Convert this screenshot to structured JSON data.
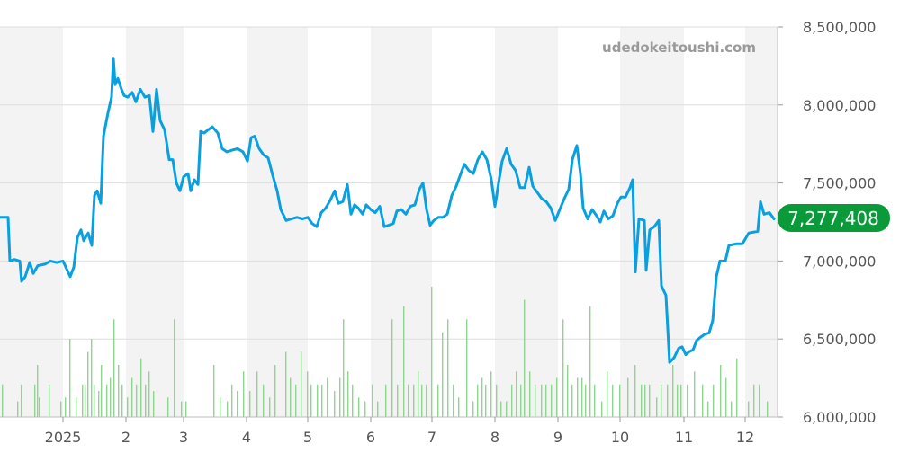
{
  "watermark": "udedokeitoushi.com",
  "colors": {
    "line": "#0aa0e0",
    "volume": "#8fd490",
    "band": "#f3f3f3",
    "grid": "#dedede",
    "badge": "#0a9a3a",
    "axis_text": "#555555",
    "watermark": "#9a9a9a"
  },
  "chart_data": {
    "type": "line",
    "title": "",
    "xlabel": "",
    "ylabel": "",
    "ylim": [
      6000000,
      8500000
    ],
    "y_ticks": [
      "8,500,000",
      "8,000,000",
      "7,500,000",
      "7,000,000",
      "6,500,000",
      "6,000,000"
    ],
    "x_ticks": [
      "2025",
      "2",
      "3",
      "4",
      "5",
      "6",
      "7",
      "8",
      "9",
      "10",
      "11",
      "12"
    ],
    "current_value_label": "7,277,408",
    "grid": true,
    "series": [
      {
        "points": [
          [
            0,
            7280000
          ],
          [
            9,
            7280000
          ],
          [
            11,
            7000000
          ],
          [
            16,
            7010000
          ],
          [
            22,
            7000000
          ],
          [
            24,
            6870000
          ],
          [
            28,
            6900000
          ],
          [
            33,
            6990000
          ],
          [
            37,
            6920000
          ],
          [
            42,
            6970000
          ],
          [
            50,
            6980000
          ],
          [
            56,
            7000000
          ],
          [
            63,
            6990000
          ],
          [
            70,
            7000000
          ],
          [
            74,
            6950000
          ],
          [
            78,
            6900000
          ],
          [
            82,
            6960000
          ],
          [
            86,
            7150000
          ],
          [
            90,
            7200000
          ],
          [
            93,
            7130000
          ],
          [
            98,
            7180000
          ],
          [
            102,
            7100000
          ],
          [
            105,
            7420000
          ],
          [
            108,
            7450000
          ],
          [
            112,
            7370000
          ],
          [
            115,
            7800000
          ],
          [
            120,
            7950000
          ],
          [
            124,
            8050000
          ],
          [
            126,
            8300000
          ],
          [
            128,
            8130000
          ],
          [
            131,
            8170000
          ],
          [
            135,
            8100000
          ],
          [
            138,
            8060000
          ],
          [
            142,
            8050000
          ],
          [
            147,
            8080000
          ],
          [
            151,
            8020000
          ],
          [
            156,
            8100000
          ],
          [
            161,
            8050000
          ],
          [
            166,
            8060000
          ],
          [
            170,
            7830000
          ],
          [
            174,
            8100000
          ],
          [
            178,
            7900000
          ],
          [
            183,
            7840000
          ],
          [
            188,
            7650000
          ],
          [
            192,
            7650000
          ],
          [
            196,
            7500000
          ],
          [
            200,
            7450000
          ],
          [
            204,
            7540000
          ],
          [
            209,
            7560000
          ],
          [
            212,
            7450000
          ],
          [
            216,
            7520000
          ],
          [
            220,
            7490000
          ],
          [
            223,
            7830000
          ],
          [
            227,
            7820000
          ],
          [
            231,
            7840000
          ],
          [
            236,
            7860000
          ],
          [
            242,
            7820000
          ],
          [
            247,
            7720000
          ],
          [
            252,
            7700000
          ],
          [
            258,
            7710000
          ],
          [
            264,
            7720000
          ],
          [
            270,
            7700000
          ],
          [
            275,
            7640000
          ],
          [
            279,
            7790000
          ],
          [
            283,
            7800000
          ],
          [
            288,
            7720000
          ],
          [
            293,
            7680000
          ],
          [
            298,
            7660000
          ],
          [
            303,
            7550000
          ],
          [
            308,
            7450000
          ],
          [
            312,
            7330000
          ],
          [
            318,
            7260000
          ],
          [
            324,
            7270000
          ],
          [
            330,
            7280000
          ],
          [
            336,
            7270000
          ],
          [
            342,
            7280000
          ],
          [
            347,
            7240000
          ],
          [
            352,
            7220000
          ],
          [
            357,
            7310000
          ],
          [
            362,
            7340000
          ],
          [
            367,
            7390000
          ],
          [
            372,
            7450000
          ],
          [
            376,
            7370000
          ],
          [
            381,
            7380000
          ],
          [
            386,
            7490000
          ],
          [
            390,
            7300000
          ],
          [
            394,
            7360000
          ],
          [
            398,
            7340000
          ],
          [
            403,
            7300000
          ],
          [
            407,
            7360000
          ],
          [
            412,
            7330000
          ],
          [
            417,
            7310000
          ],
          [
            422,
            7350000
          ],
          [
            427,
            7220000
          ],
          [
            432,
            7230000
          ],
          [
            437,
            7240000
          ],
          [
            441,
            7320000
          ],
          [
            446,
            7330000
          ],
          [
            451,
            7300000
          ],
          [
            456,
            7350000
          ],
          [
            461,
            7360000
          ],
          [
            466,
            7460000
          ],
          [
            470,
            7500000
          ],
          [
            474,
            7330000
          ],
          [
            478,
            7230000
          ],
          [
            482,
            7260000
          ],
          [
            487,
            7280000
          ],
          [
            492,
            7280000
          ],
          [
            497,
            7300000
          ],
          [
            502,
            7420000
          ],
          [
            507,
            7480000
          ],
          [
            512,
            7560000
          ],
          [
            516,
            7620000
          ],
          [
            521,
            7580000
          ],
          [
            526,
            7560000
          ],
          [
            531,
            7650000
          ],
          [
            536,
            7700000
          ],
          [
            541,
            7650000
          ],
          [
            546,
            7520000
          ],
          [
            550,
            7350000
          ],
          [
            554,
            7500000
          ],
          [
            558,
            7640000
          ],
          [
            563,
            7720000
          ],
          [
            568,
            7620000
          ],
          [
            573,
            7580000
          ],
          [
            578,
            7470000
          ],
          [
            583,
            7470000
          ],
          [
            588,
            7600000
          ],
          [
            592,
            7480000
          ],
          [
            597,
            7440000
          ],
          [
            602,
            7400000
          ],
          [
            607,
            7380000
          ],
          [
            612,
            7340000
          ],
          [
            617,
            7260000
          ],
          [
            622,
            7330000
          ],
          [
            627,
            7400000
          ],
          [
            632,
            7460000
          ],
          [
            636,
            7650000
          ],
          [
            641,
            7740000
          ],
          [
            645,
            7560000
          ],
          [
            648,
            7340000
          ],
          [
            653,
            7270000
          ],
          [
            658,
            7330000
          ],
          [
            663,
            7290000
          ],
          [
            667,
            7250000
          ],
          [
            671,
            7320000
          ],
          [
            676,
            7270000
          ],
          [
            681,
            7290000
          ],
          [
            686,
            7370000
          ],
          [
            690,
            7410000
          ],
          [
            695,
            7410000
          ],
          [
            700,
            7470000
          ],
          [
            703,
            7520000
          ],
          [
            706,
            6930000
          ],
          [
            710,
            7270000
          ],
          [
            716,
            7260000
          ],
          [
            718,
            6940000
          ],
          [
            722,
            7200000
          ],
          [
            727,
            7220000
          ],
          [
            732,
            7260000
          ],
          [
            735,
            6840000
          ],
          [
            740,
            6780000
          ],
          [
            744,
            6350000
          ],
          [
            749,
            6380000
          ],
          [
            754,
            6440000
          ],
          [
            758,
            6450000
          ],
          [
            762,
            6400000
          ],
          [
            766,
            6420000
          ],
          [
            770,
            6430000
          ],
          [
            774,
            6490000
          ],
          [
            778,
            6510000
          ],
          [
            783,
            6530000
          ],
          [
            788,
            6540000
          ],
          [
            792,
            6620000
          ],
          [
            796,
            6900000
          ],
          [
            800,
            7000000
          ],
          [
            806,
            7000000
          ],
          [
            810,
            7100000
          ],
          [
            818,
            7110000
          ],
          [
            825,
            7110000
          ],
          [
            832,
            7180000
          ],
          [
            842,
            7190000
          ],
          [
            845,
            7380000
          ],
          [
            849,
            7300000
          ],
          [
            855,
            7310000
          ],
          [
            860,
            7270000
          ]
        ]
      }
    ],
    "volume": [
      [
        2,
        0.25
      ],
      [
        19,
        0.12
      ],
      [
        23,
        0.25
      ],
      [
        38,
        0.25
      ],
      [
        41,
        0.4
      ],
      [
        43,
        0.15
      ],
      [
        54,
        0.25
      ],
      [
        67,
        0.12
      ],
      [
        72,
        0.15
      ],
      [
        77,
        0.6
      ],
      [
        84,
        0.15
      ],
      [
        91,
        0.25
      ],
      [
        94,
        0.25
      ],
      [
        97,
        0.5
      ],
      [
        101,
        0.6
      ],
      [
        104,
        0.25
      ],
      [
        109,
        0.2
      ],
      [
        112,
        0.4
      ],
      [
        118,
        0.25
      ],
      [
        122,
        0.3
      ],
      [
        126,
        0.75
      ],
      [
        131,
        0.4
      ],
      [
        135,
        0.25
      ],
      [
        141,
        0.15
      ],
      [
        146,
        0.3
      ],
      [
        151,
        0.25
      ],
      [
        156,
        0.45
      ],
      [
        161,
        0.25
      ],
      [
        165,
        0.35
      ],
      [
        170,
        0.2
      ],
      [
        186,
        0.15
      ],
      [
        193,
        0.75
      ],
      [
        201,
        0.12
      ],
      [
        206,
        0.12
      ],
      [
        237,
        0.4
      ],
      [
        244,
        0.15
      ],
      [
        252,
        0.12
      ],
      [
        257,
        0.25
      ],
      [
        263,
        0.2
      ],
      [
        270,
        0.35
      ],
      [
        277,
        0.2
      ],
      [
        285,
        0.35
      ],
      [
        292,
        0.25
      ],
      [
        299,
        0.15
      ],
      [
        305,
        0.4
      ],
      [
        317,
        0.5
      ],
      [
        322,
        0.3
      ],
      [
        328,
        0.25
      ],
      [
        334,
        0.5
      ],
      [
        341,
        0.35
      ],
      [
        345,
        0.25
      ],
      [
        352,
        0.25
      ],
      [
        357,
        0.25
      ],
      [
        363,
        0.3
      ],
      [
        371,
        0.2
      ],
      [
        377,
        0.3
      ],
      [
        381,
        0.75
      ],
      [
        386,
        0.35
      ],
      [
        391,
        0.25
      ],
      [
        398,
        0.15
      ],
      [
        405,
        0.12
      ],
      [
        413,
        0.25
      ],
      [
        419,
        0.12
      ],
      [
        428,
        0.25
      ],
      [
        435,
        0.75
      ],
      [
        441,
        0.25
      ],
      [
        448,
        0.85
      ],
      [
        453,
        0.25
      ],
      [
        459,
        0.25
      ],
      [
        464,
        0.35
      ],
      [
        468,
        0.25
      ],
      [
        473,
        0.25
      ],
      [
        479,
        1.0
      ],
      [
        486,
        0.25
      ],
      [
        491,
        0.65
      ],
      [
        497,
        0.75
      ],
      [
        503,
        0.25
      ],
      [
        509,
        0.15
      ],
      [
        518,
        0.75
      ],
      [
        525,
        0.12
      ],
      [
        530,
        0.25
      ],
      [
        535,
        0.3
      ],
      [
        539,
        0.25
      ],
      [
        545,
        0.35
      ],
      [
        551,
        0.25
      ],
      [
        556,
        0.12
      ],
      [
        562,
        0.12
      ],
      [
        568,
        0.25
      ],
      [
        573,
        0.35
      ],
      [
        578,
        0.25
      ],
      [
        582,
        0.9
      ],
      [
        588,
        0.35
      ],
      [
        594,
        0.25
      ],
      [
        601,
        0.25
      ],
      [
        606,
        0.25
      ],
      [
        612,
        0.25
      ],
      [
        618,
        0.3
      ],
      [
        625,
        0.75
      ],
      [
        630,
        0.4
      ],
      [
        635,
        0.25
      ],
      [
        641,
        0.3
      ],
      [
        646,
        0.3
      ],
      [
        650,
        0.25
      ],
      [
        655,
        0.85
      ],
      [
        660,
        0.25
      ],
      [
        668,
        0.12
      ],
      [
        674,
        0.35
      ],
      [
        680,
        0.25
      ],
      [
        688,
        0.25
      ],
      [
        697,
        0.3
      ],
      [
        705,
        0.4
      ],
      [
        712,
        0.25
      ],
      [
        716,
        0.25
      ],
      [
        721,
        0.25
      ],
      [
        729,
        0.15
      ],
      [
        734,
        0.25
      ],
      [
        741,
        0.25
      ],
      [
        747,
        0.4
      ],
      [
        752,
        0.25
      ],
      [
        756,
        0.25
      ],
      [
        763,
        0.25
      ],
      [
        771,
        0.35
      ],
      [
        780,
        0.25
      ],
      [
        786,
        0.12
      ],
      [
        792,
        0.25
      ],
      [
        800,
        0.4
      ],
      [
        806,
        0.3
      ],
      [
        812,
        0.12
      ],
      [
        818,
        0.45
      ],
      [
        831,
        0.12
      ],
      [
        837,
        0.25
      ],
      [
        843,
        0.25
      ],
      [
        852,
        0.12
      ]
    ]
  }
}
